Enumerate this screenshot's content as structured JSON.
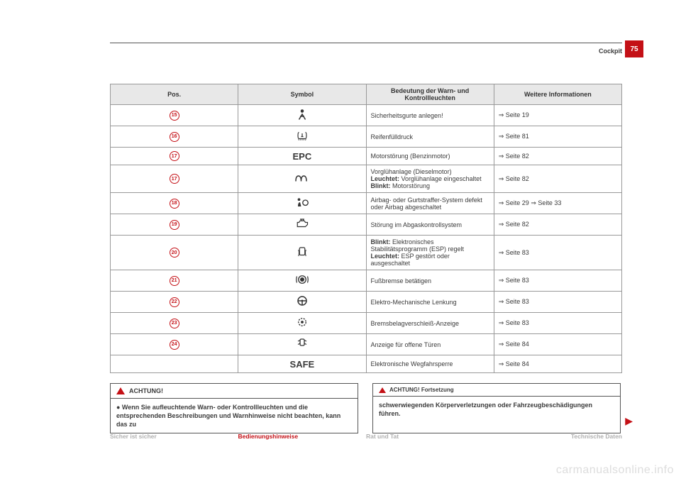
{
  "header": {
    "section": "Cockpit",
    "page_number": "75"
  },
  "table": {
    "headers": [
      "Pos.",
      "Symbol",
      "Bedeutung der Warn- und Kontrollleuchten",
      "Weitere Informationen"
    ],
    "rows": [
      {
        "pos": "15",
        "symbol": "seatbelt",
        "meaning": "Sicherheitsgurte anlegen!",
        "info": "⇒ Seite 19"
      },
      {
        "pos": "16",
        "symbol": "tyre",
        "meaning": "Reifenfülldruck",
        "info": "⇒ Seite 81"
      },
      {
        "pos": "17",
        "symbol": "epc",
        "meaning": "Motorstörung (Benzinmotor)",
        "info": "⇒ Seite 82"
      },
      {
        "pos": "17",
        "symbol": "glow",
        "meaning": "Vorglühanlage (Dieselmotor)\n<b>Leuchtet:</b> Vorglühanlage eingeschaltet\n<b>Blinkt:</b> Motorstörung",
        "info": "⇒ Seite 82"
      },
      {
        "pos": "18",
        "symbol": "airbag",
        "meaning": "Airbag- oder Gurtstraffer-System defekt oder Airbag abgeschaltet",
        "info": "⇒ Seite 29 ⇒ Seite 33"
      },
      {
        "pos": "19",
        "symbol": "engine",
        "meaning": "Störung im Abgaskontrollsystem",
        "info": "⇒ Seite 82"
      },
      {
        "pos": "20",
        "symbol": "esp",
        "meaning": "<b>Blinkt:</b> Elektronisches Stabilitätsprogramm (ESP) regelt\n<b>Leuchtet:</b> ESP gestört oder ausgeschaltet",
        "info": "⇒ Seite 83"
      },
      {
        "pos": "21",
        "symbol": "brake",
        "meaning": "Fußbremse betätigen",
        "info": "⇒ Seite 83"
      },
      {
        "pos": "22",
        "symbol": "steering",
        "meaning": "Elektro-Mechanische Lenkung",
        "info": "⇒ Seite 83"
      },
      {
        "pos": "23",
        "symbol": "brakepad",
        "meaning": "Bremsbelagverschleiß-Anzeige",
        "info": "⇒ Seite 83"
      },
      {
        "pos": "24",
        "symbol": "door",
        "meaning": "Anzeige für offene Türen",
        "info": "⇒ Seite 84"
      },
      {
        "pos": "",
        "symbol": "safe",
        "meaning": "Elektronische Wegfahrsperre",
        "info": "⇒ Seite 84"
      }
    ]
  },
  "achtung_left": {
    "heading": "ACHTUNG!",
    "body": "●  Wenn Sie aufleuchtende Warn- oder Kontrollleuchten und die entsprechenden Beschreibungen und Warnhinweise nicht beachten, kann das zu"
  },
  "achtung_right": {
    "heading": "ACHTUNG! Fortsetzung",
    "body": "schwerwiegenden Körperverletzungen oder Fahrzeugbeschädigungen führen."
  },
  "footer": {
    "c1": "Sicher ist sicher",
    "c2": "Bedienungshinweise",
    "c3": "Rat und Tat",
    "c4": "Technische Daten"
  },
  "watermark": "carmanualsonline.info",
  "symbols": {
    "seatbelt": "svg:seatbelt",
    "tyre": "svg:tyre",
    "epc": "EPC",
    "glow": "svg:glow",
    "airbag": "svg:airbag",
    "engine": "svg:engine",
    "esp": "svg:esp",
    "brake": "svg:brake",
    "steering": "svg:steering",
    "brakepad": "svg:brakepad",
    "door": "svg:door",
    "safe": "SAFE"
  }
}
